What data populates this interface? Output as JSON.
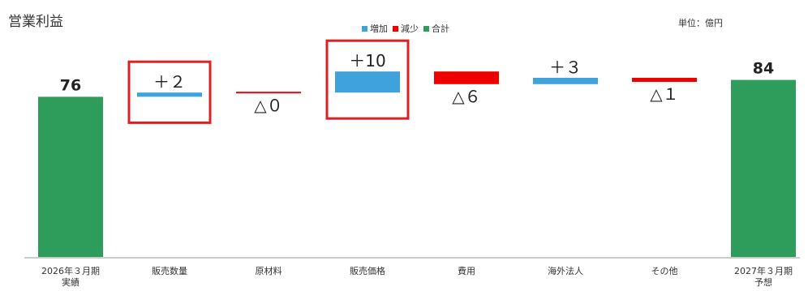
{
  "title": "営業利益",
  "unit": "単位：億円",
  "legend": [
    {
      "label": "増加",
      "color": "#3fa2dc"
    },
    {
      "label": "減少",
      "color": "#ee0000"
    },
    {
      "label": "合計",
      "color": "#2e9c5a"
    }
  ],
  "highlight_color": "#e02020",
  "chart_data": {
    "type": "bar",
    "subtype": "waterfall",
    "title": "営業利益",
    "unit": "単位：億円",
    "ylim": [
      0,
      90
    ],
    "grid": false,
    "legend_position": "top-center",
    "categories": [
      "2026年３月期\n実績",
      "販売数量",
      "原材料",
      "販売価格",
      "費用",
      "海外法人",
      "その他",
      "2027年３月期\n予想"
    ],
    "values": [
      76,
      2,
      0,
      10,
      -6,
      3,
      -1,
      84
    ],
    "kinds": [
      "total",
      "increase",
      "decrease",
      "increase",
      "decrease",
      "increase",
      "decrease",
      "total"
    ],
    "value_labels": [
      "76",
      "＋２",
      "△０",
      "＋10",
      "△６",
      "＋３",
      "△１",
      "84"
    ],
    "highlighted": [
      "販売数量",
      "販売価格"
    ]
  }
}
